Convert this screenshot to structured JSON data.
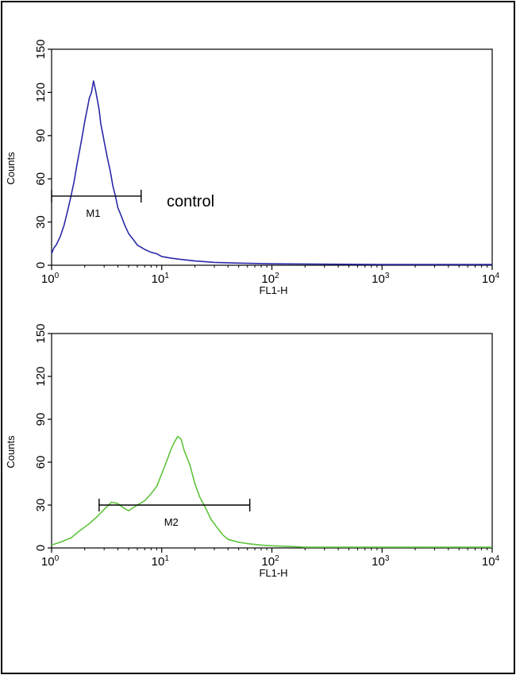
{
  "chart_data": [
    {
      "type": "line",
      "x_scale": "log",
      "xlim": [
        1,
        10000
      ],
      "ylim": [
        0,
        150
      ],
      "xlabel": "FL1-H",
      "ylabel": "Counts",
      "x_ticks": [
        {
          "base": "10",
          "exp": "0"
        },
        {
          "base": "10",
          "exp": "1"
        },
        {
          "base": "10",
          "exp": "2"
        },
        {
          "base": "10",
          "exp": "3"
        },
        {
          "base": "10",
          "exp": "4"
        }
      ],
      "y_ticks": [
        "0",
        "30",
        "60",
        "90",
        "120",
        "150"
      ],
      "series": [
        {
          "color": "#2a2aa8",
          "x": [
            1,
            1.05,
            1.1,
            1.2,
            1.3,
            1.4,
            1.5,
            1.6,
            1.7,
            1.8,
            1.9,
            2.0,
            2.1,
            2.2,
            2.3,
            2.4,
            2.5,
            2.6,
            2.7,
            2.8,
            2.9,
            3.0,
            3.2,
            3.4,
            3.6,
            3.8,
            4.0,
            4.3,
            4.6,
            5.0,
            5.5,
            6.0,
            7.0,
            8.0,
            9.0,
            10,
            12,
            15,
            20,
            30,
            50,
            100,
            1000,
            10000
          ],
          "y": [
            8,
            12,
            14,
            20,
            28,
            38,
            48,
            58,
            70,
            80,
            90,
            100,
            108,
            116,
            120,
            128,
            122,
            115,
            108,
            98,
            92,
            86,
            75,
            66,
            55,
            48,
            40,
            34,
            28,
            22,
            18,
            14,
            11,
            9,
            8,
            6,
            5,
            4,
            3,
            2,
            1.5,
            1,
            0.5,
            0.5
          ]
        }
      ],
      "markers": [
        {
          "label": "M1",
          "x_start": 1.0,
          "x_end": 6.5,
          "y": 48
        }
      ],
      "annotations": [
        "control"
      ]
    },
    {
      "type": "line",
      "x_scale": "log",
      "xlim": [
        1,
        10000
      ],
      "ylim": [
        0,
        150
      ],
      "xlabel": "FL1-H",
      "ylabel": "Counts",
      "x_ticks": [
        {
          "base": "10",
          "exp": "0"
        },
        {
          "base": "10",
          "exp": "1"
        },
        {
          "base": "10",
          "exp": "2"
        },
        {
          "base": "10",
          "exp": "3"
        },
        {
          "base": "10",
          "exp": "4"
        }
      ],
      "y_ticks": [
        "0",
        "30",
        "60",
        "90",
        "120",
        "150"
      ],
      "series": [
        {
          "color": "#5ec43c",
          "x": [
            1,
            1.2,
            1.5,
            1.8,
            2.2,
            2.6,
            3.0,
            3.5,
            4.0,
            4.5,
            5.0,
            6.0,
            7.0,
            8.0,
            9.0,
            10,
            11,
            12,
            13,
            14,
            15,
            16,
            18,
            20,
            22,
            25,
            28,
            32,
            36,
            40,
            50,
            60,
            80,
            100,
            150,
            200,
            500,
            1000,
            10000
          ],
          "y": [
            2,
            4,
            7,
            12,
            17,
            22,
            27,
            32,
            31,
            28,
            26,
            30,
            33,
            38,
            43,
            52,
            60,
            68,
            74,
            78,
            76,
            68,
            58,
            45,
            36,
            28,
            20,
            14,
            9,
            6,
            4,
            3,
            2,
            1.5,
            1,
            0.5,
            0.5,
            0.5,
            0.5
          ]
        }
      ],
      "markers": [
        {
          "label": "M2",
          "x_start": 2.7,
          "x_end": 63,
          "y": 30
        }
      ],
      "annotations": []
    }
  ]
}
